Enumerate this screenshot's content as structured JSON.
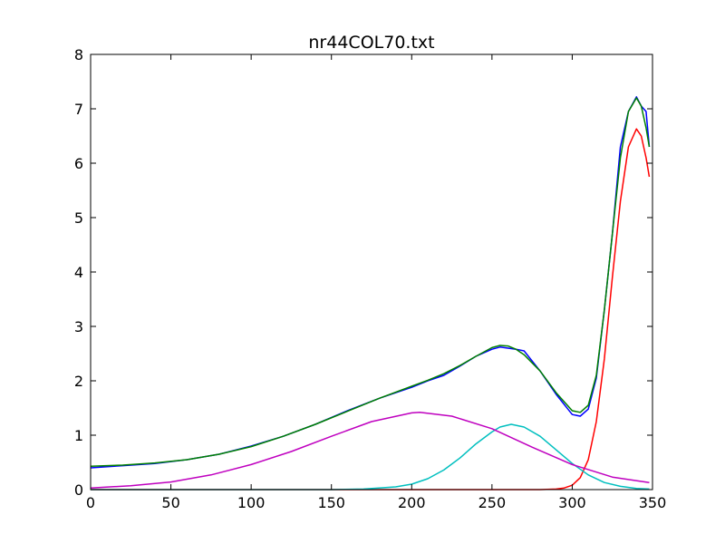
{
  "chart_data": {
    "type": "line",
    "title": "nr44COL70.txt",
    "xlabel": "",
    "ylabel": "",
    "xlim": [
      0,
      350
    ],
    "ylim": [
      0,
      8
    ],
    "x_ticks": [
      0,
      50,
      100,
      150,
      200,
      250,
      300,
      350
    ],
    "y_ticks": [
      0,
      1,
      2,
      3,
      4,
      5,
      6,
      7,
      8
    ],
    "x_tick_labels": [
      "0",
      "50",
      "100",
      "150",
      "200",
      "250",
      "300",
      "350"
    ],
    "y_tick_labels": [
      "0",
      "1",
      "2",
      "3",
      "4",
      "5",
      "6",
      "7",
      "8"
    ],
    "grid": false,
    "legend": "none",
    "series": [
      {
        "color": "#0000ff",
        "x": [
          0,
          20,
          40,
          60,
          80,
          100,
          120,
          140,
          160,
          180,
          200,
          210,
          220,
          230,
          240,
          250,
          255,
          260,
          265,
          270,
          280,
          290,
          300,
          305,
          310,
          315,
          320,
          325,
          330,
          335,
          340,
          343,
          346,
          348
        ],
        "y": [
          0.4,
          0.44,
          0.48,
          0.55,
          0.65,
          0.8,
          0.98,
          1.2,
          1.45,
          1.68,
          1.88,
          2.0,
          2.1,
          2.27,
          2.45,
          2.58,
          2.62,
          2.6,
          2.58,
          2.55,
          2.18,
          1.75,
          1.38,
          1.35,
          1.48,
          2.05,
          3.3,
          4.7,
          6.3,
          6.95,
          7.22,
          7.05,
          6.95,
          6.3
        ]
      },
      {
        "color": "#008000",
        "x": [
          0,
          20,
          40,
          60,
          80,
          100,
          120,
          140,
          160,
          180,
          200,
          210,
          220,
          230,
          240,
          250,
          255,
          260,
          265,
          270,
          280,
          290,
          300,
          305,
          310,
          315,
          320,
          325,
          330,
          335,
          340,
          343,
          346,
          348
        ],
        "y": [
          0.43,
          0.45,
          0.49,
          0.55,
          0.65,
          0.79,
          0.98,
          1.2,
          1.44,
          1.68,
          1.9,
          2.01,
          2.13,
          2.28,
          2.45,
          2.61,
          2.65,
          2.64,
          2.58,
          2.48,
          2.18,
          1.78,
          1.45,
          1.42,
          1.55,
          2.1,
          3.3,
          4.7,
          6.1,
          6.95,
          7.2,
          7.05,
          6.65,
          6.3
        ]
      },
      {
        "color": "#ff0000",
        "x": [
          0,
          280,
          290,
          295,
          300,
          305,
          310,
          315,
          320,
          325,
          330,
          335,
          340,
          343,
          346,
          348
        ],
        "y": [
          0,
          0,
          0.01,
          0.03,
          0.08,
          0.22,
          0.55,
          1.25,
          2.4,
          3.9,
          5.3,
          6.3,
          6.63,
          6.5,
          6.1,
          5.75
        ]
      },
      {
        "color": "#00bfbf",
        "x": [
          0,
          150,
          170,
          190,
          200,
          210,
          220,
          230,
          240,
          250,
          255,
          262,
          270,
          280,
          290,
          300,
          310,
          320,
          330,
          340,
          348
        ],
        "y": [
          0,
          0,
          0.01,
          0.05,
          0.1,
          0.2,
          0.36,
          0.58,
          0.84,
          1.06,
          1.15,
          1.2,
          1.15,
          0.98,
          0.73,
          0.48,
          0.27,
          0.13,
          0.06,
          0.02,
          0.01
        ]
      },
      {
        "color": "#bf00bf",
        "x": [
          0,
          25,
          50,
          75,
          100,
          125,
          150,
          175,
          200,
          205,
          225,
          250,
          275,
          300,
          325,
          348
        ],
        "y": [
          0.03,
          0.07,
          0.14,
          0.27,
          0.46,
          0.7,
          0.98,
          1.25,
          1.41,
          1.42,
          1.35,
          1.12,
          0.78,
          0.46,
          0.23,
          0.13
        ]
      }
    ]
  }
}
